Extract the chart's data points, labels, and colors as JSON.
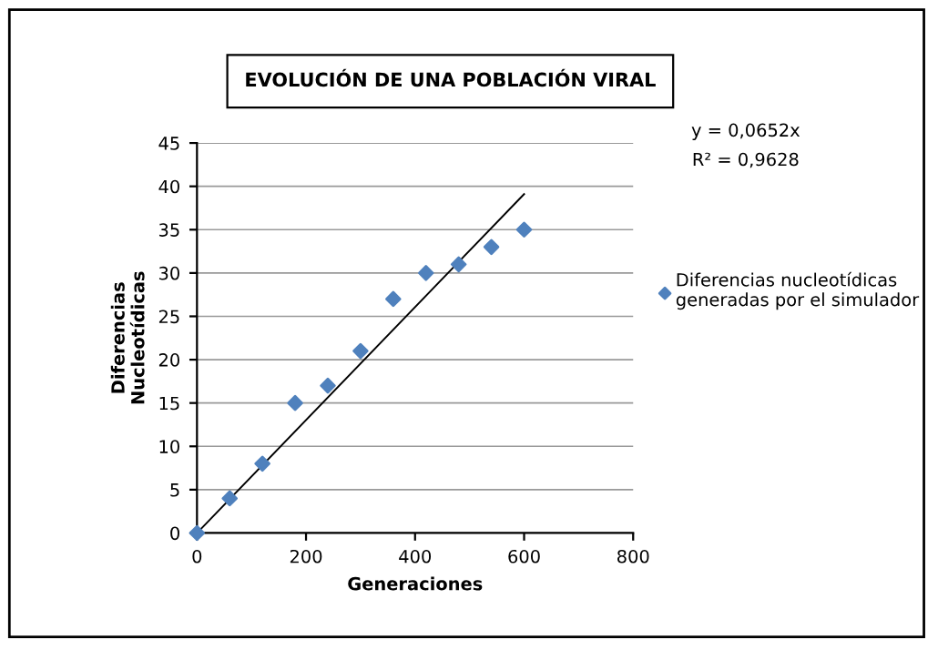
{
  "chart_data": {
    "type": "scatter",
    "title": "EVOLUCIÓN DE UNA POBLACIÓN VIRAL",
    "xlabel": "Generaciones",
    "ylabel": "Diferencias\nNucleotídicas",
    "series": [
      {
        "name": "Diferencias nucleotídicas\ngeneradas por el simulador",
        "color": "#4f81bd",
        "x": [
          0,
          60,
          120,
          180,
          240,
          300,
          360,
          420,
          480,
          540,
          600
        ],
        "values": [
          0,
          4,
          8,
          15,
          17,
          21,
          27,
          30,
          31,
          33,
          35
        ],
        "marker": "diamond"
      },
      {
        "type": "line",
        "color": "#000000",
        "x": [
          0,
          600
        ],
        "values": [
          0,
          39.1
        ],
        "marker": "none"
      }
    ],
    "annotations": [
      "y = 0,0652x",
      "R² = 0,9628"
    ],
    "xlim": [
      0,
      800
    ],
    "xticks": [
      0,
      200,
      400,
      600,
      800
    ],
    "ylim": [
      0,
      45
    ],
    "yticks": [
      0,
      5,
      10,
      15,
      20,
      25,
      30,
      35,
      40,
      45
    ],
    "grid": "y",
    "legend": "right"
  }
}
